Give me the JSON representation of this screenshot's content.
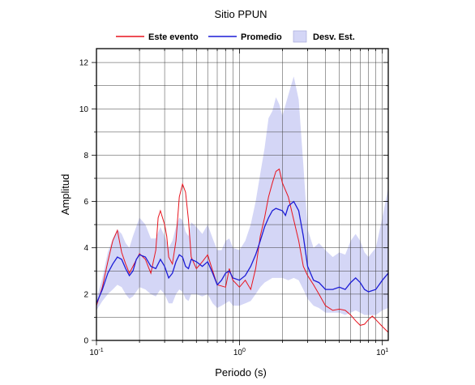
{
  "chart_data": {
    "type": "line",
    "title": "Sitio PPUN",
    "xlabel": "Periodo (s)",
    "ylabel": "Amplitud",
    "x_scale": "log",
    "xlim": [
      0.1,
      11
    ],
    "ylim": [
      0,
      12.6
    ],
    "grid": true,
    "legend_position": "top",
    "x_tick_labels": [
      {
        "base": "10",
        "exp": "-1",
        "value": 0.1
      },
      {
        "base": "10",
        "exp": "0",
        "value": 1
      },
      {
        "base": "10",
        "exp": "1",
        "value": 10
      }
    ],
    "y_ticks": [
      0,
      2,
      4,
      6,
      8,
      10,
      12
    ],
    "series": [
      {
        "name": "Este evento",
        "color": "#e8141e",
        "points": [
          [
            0.1,
            1.5
          ],
          [
            0.11,
            2.3
          ],
          [
            0.12,
            3.4
          ],
          [
            0.13,
            4.3
          ],
          [
            0.14,
            4.75
          ],
          [
            0.15,
            3.8
          ],
          [
            0.16,
            3.3
          ],
          [
            0.17,
            2.9
          ],
          [
            0.18,
            3.2
          ],
          [
            0.2,
            3.75
          ],
          [
            0.22,
            3.5
          ],
          [
            0.24,
            2.9
          ],
          [
            0.26,
            3.9
          ],
          [
            0.27,
            5.3
          ],
          [
            0.28,
            5.6
          ],
          [
            0.29,
            5.3
          ],
          [
            0.3,
            5.0
          ],
          [
            0.31,
            4.5
          ],
          [
            0.32,
            3.6
          ],
          [
            0.34,
            3.3
          ],
          [
            0.36,
            4.3
          ],
          [
            0.38,
            6.2
          ],
          [
            0.4,
            6.75
          ],
          [
            0.42,
            6.4
          ],
          [
            0.44,
            5.2
          ],
          [
            0.46,
            3.6
          ],
          [
            0.5,
            3.1
          ],
          [
            0.55,
            3.4
          ],
          [
            0.6,
            3.7
          ],
          [
            0.65,
            3.0
          ],
          [
            0.7,
            2.4
          ],
          [
            0.8,
            2.3
          ],
          [
            0.85,
            3.1
          ],
          [
            0.9,
            2.6
          ],
          [
            1.0,
            2.3
          ],
          [
            1.1,
            2.6
          ],
          [
            1.2,
            2.2
          ],
          [
            1.3,
            3.1
          ],
          [
            1.4,
            4.5
          ],
          [
            1.5,
            5.3
          ],
          [
            1.6,
            6.2
          ],
          [
            1.7,
            6.8
          ],
          [
            1.8,
            7.3
          ],
          [
            1.9,
            7.4
          ],
          [
            2.0,
            6.8
          ],
          [
            2.2,
            6.2
          ],
          [
            2.4,
            5.2
          ],
          [
            2.6,
            4.3
          ],
          [
            2.8,
            3.2
          ],
          [
            3.0,
            2.8
          ],
          [
            3.3,
            2.4
          ],
          [
            3.6,
            2.0
          ],
          [
            4.0,
            1.5
          ],
          [
            4.5,
            1.3
          ],
          [
            5.0,
            1.35
          ],
          [
            5.5,
            1.3
          ],
          [
            6.0,
            1.1
          ],
          [
            6.5,
            0.85
          ],
          [
            7.0,
            0.65
          ],
          [
            7.5,
            0.7
          ],
          [
            8.0,
            0.9
          ],
          [
            8.5,
            1.05
          ],
          [
            9.0,
            0.9
          ],
          [
            10.0,
            0.6
          ],
          [
            11.0,
            0.35
          ]
        ]
      },
      {
        "name": "Promedio",
        "color": "#1c1cd6",
        "points": [
          [
            0.1,
            1.6
          ],
          [
            0.11,
            2.2
          ],
          [
            0.12,
            2.9
          ],
          [
            0.13,
            3.3
          ],
          [
            0.14,
            3.6
          ],
          [
            0.15,
            3.5
          ],
          [
            0.16,
            3.1
          ],
          [
            0.17,
            2.8
          ],
          [
            0.18,
            3.0
          ],
          [
            0.19,
            3.5
          ],
          [
            0.2,
            3.7
          ],
          [
            0.22,
            3.6
          ],
          [
            0.24,
            3.2
          ],
          [
            0.26,
            3.1
          ],
          [
            0.28,
            3.5
          ],
          [
            0.3,
            3.2
          ],
          [
            0.32,
            2.7
          ],
          [
            0.34,
            2.9
          ],
          [
            0.36,
            3.4
          ],
          [
            0.38,
            3.7
          ],
          [
            0.4,
            3.6
          ],
          [
            0.42,
            3.2
          ],
          [
            0.44,
            3.1
          ],
          [
            0.46,
            3.5
          ],
          [
            0.5,
            3.4
          ],
          [
            0.55,
            3.2
          ],
          [
            0.6,
            3.4
          ],
          [
            0.65,
            2.9
          ],
          [
            0.7,
            2.4
          ],
          [
            0.75,
            2.6
          ],
          [
            0.8,
            2.9
          ],
          [
            0.85,
            3.0
          ],
          [
            0.9,
            2.7
          ],
          [
            1.0,
            2.6
          ],
          [
            1.1,
            2.8
          ],
          [
            1.2,
            3.2
          ],
          [
            1.3,
            3.7
          ],
          [
            1.4,
            4.3
          ],
          [
            1.5,
            4.9
          ],
          [
            1.6,
            5.3
          ],
          [
            1.7,
            5.6
          ],
          [
            1.8,
            5.7
          ],
          [
            2.0,
            5.6
          ],
          [
            2.1,
            5.4
          ],
          [
            2.2,
            5.8
          ],
          [
            2.4,
            6.0
          ],
          [
            2.6,
            5.6
          ],
          [
            2.8,
            4.5
          ],
          [
            3.0,
            3.2
          ],
          [
            3.3,
            2.6
          ],
          [
            3.6,
            2.5
          ],
          [
            4.0,
            2.2
          ],
          [
            4.5,
            2.2
          ],
          [
            5.0,
            2.3
          ],
          [
            5.5,
            2.2
          ],
          [
            6.0,
            2.5
          ],
          [
            6.5,
            2.7
          ],
          [
            7.0,
            2.5
          ],
          [
            7.5,
            2.2
          ],
          [
            8.0,
            2.1
          ],
          [
            9.0,
            2.2
          ],
          [
            10.0,
            2.6
          ],
          [
            11.0,
            2.9
          ]
        ]
      }
    ],
    "band": {
      "name": "Desv. Est.",
      "color": "#d4d6f6",
      "upper": [
        [
          0.1,
          1.8
        ],
        [
          0.11,
          2.7
        ],
        [
          0.12,
          3.8
        ],
        [
          0.13,
          4.4
        ],
        [
          0.14,
          4.8
        ],
        [
          0.15,
          4.6
        ],
        [
          0.16,
          4.2
        ],
        [
          0.17,
          4.0
        ],
        [
          0.18,
          4.5
        ],
        [
          0.2,
          5.3
        ],
        [
          0.22,
          5.0
        ],
        [
          0.24,
          4.4
        ],
        [
          0.26,
          4.4
        ],
        [
          0.28,
          4.9
        ],
        [
          0.3,
          4.5
        ],
        [
          0.32,
          4.0
        ],
        [
          0.34,
          4.3
        ],
        [
          0.36,
          4.9
        ],
        [
          0.38,
          5.3
        ],
        [
          0.4,
          5.2
        ],
        [
          0.42,
          4.7
        ],
        [
          0.44,
          4.5
        ],
        [
          0.46,
          5.1
        ],
        [
          0.5,
          4.9
        ],
        [
          0.55,
          4.6
        ],
        [
          0.6,
          5.0
        ],
        [
          0.65,
          4.4
        ],
        [
          0.7,
          3.9
        ],
        [
          0.75,
          3.9
        ],
        [
          0.8,
          4.3
        ],
        [
          0.85,
          4.4
        ],
        [
          0.9,
          4.0
        ],
        [
          1.0,
          3.9
        ],
        [
          1.1,
          4.3
        ],
        [
          1.2,
          5.0
        ],
        [
          1.3,
          6.0
        ],
        [
          1.4,
          7.2
        ],
        [
          1.5,
          8.3
        ],
        [
          1.6,
          9.6
        ],
        [
          1.7,
          9.9
        ],
        [
          1.8,
          10.5
        ],
        [
          1.9,
          10.2
        ],
        [
          2.0,
          9.7
        ],
        [
          2.2,
          10.6
        ],
        [
          2.4,
          11.4
        ],
        [
          2.6,
          10.4
        ],
        [
          2.8,
          7.6
        ],
        [
          3.0,
          4.8
        ],
        [
          3.3,
          4.0
        ],
        [
          3.6,
          4.2
        ],
        [
          4.0,
          3.9
        ],
        [
          4.5,
          3.6
        ],
        [
          5.0,
          3.8
        ],
        [
          5.5,
          3.7
        ],
        [
          6.0,
          4.3
        ],
        [
          6.5,
          4.6
        ],
        [
          7.0,
          4.3
        ],
        [
          7.5,
          3.8
        ],
        [
          8.0,
          3.6
        ],
        [
          9.0,
          4.0
        ],
        [
          10.0,
          5.3
        ],
        [
          11.0,
          6.6
        ]
      ],
      "lower": [
        [
          0.1,
          1.3
        ],
        [
          0.11,
          1.7
        ],
        [
          0.12,
          2.0
        ],
        [
          0.13,
          2.2
        ],
        [
          0.14,
          2.4
        ],
        [
          0.15,
          2.3
        ],
        [
          0.16,
          2.0
        ],
        [
          0.17,
          1.8
        ],
        [
          0.18,
          1.9
        ],
        [
          0.2,
          2.3
        ],
        [
          0.22,
          2.2
        ],
        [
          0.24,
          2.0
        ],
        [
          0.26,
          1.9
        ],
        [
          0.28,
          2.2
        ],
        [
          0.3,
          2.0
        ],
        [
          0.32,
          1.6
        ],
        [
          0.34,
          1.6
        ],
        [
          0.36,
          2.0
        ],
        [
          0.38,
          2.2
        ],
        [
          0.4,
          2.1
        ],
        [
          0.42,
          1.8
        ],
        [
          0.44,
          1.7
        ],
        [
          0.46,
          2.0
        ],
        [
          0.5,
          2.0
        ],
        [
          0.55,
          1.9
        ],
        [
          0.6,
          2.0
        ],
        [
          0.65,
          1.6
        ],
        [
          0.7,
          1.4
        ],
        [
          0.75,
          1.5
        ],
        [
          0.8,
          1.6
        ],
        [
          0.85,
          1.7
        ],
        [
          0.9,
          1.5
        ],
        [
          1.0,
          1.5
        ],
        [
          1.1,
          1.6
        ],
        [
          1.2,
          1.7
        ],
        [
          1.3,
          2.0
        ],
        [
          1.4,
          2.3
        ],
        [
          1.5,
          2.5
        ],
        [
          1.6,
          2.6
        ],
        [
          1.7,
          2.7
        ],
        [
          1.8,
          2.7
        ],
        [
          2.0,
          2.7
        ],
        [
          2.2,
          2.6
        ],
        [
          2.4,
          2.7
        ],
        [
          2.6,
          2.6
        ],
        [
          2.8,
          2.2
        ],
        [
          3.0,
          1.8
        ],
        [
          3.3,
          1.5
        ],
        [
          3.6,
          1.4
        ],
        [
          4.0,
          1.2
        ],
        [
          4.5,
          1.2
        ],
        [
          5.0,
          1.2
        ],
        [
          5.5,
          1.1
        ],
        [
          6.0,
          1.2
        ],
        [
          6.5,
          1.3
        ],
        [
          7.0,
          1.2
        ],
        [
          7.5,
          1.1
        ],
        [
          8.0,
          1.1
        ],
        [
          9.0,
          1.1
        ],
        [
          10.0,
          1.3
        ],
        [
          11.0,
          1.4
        ]
      ]
    }
  }
}
